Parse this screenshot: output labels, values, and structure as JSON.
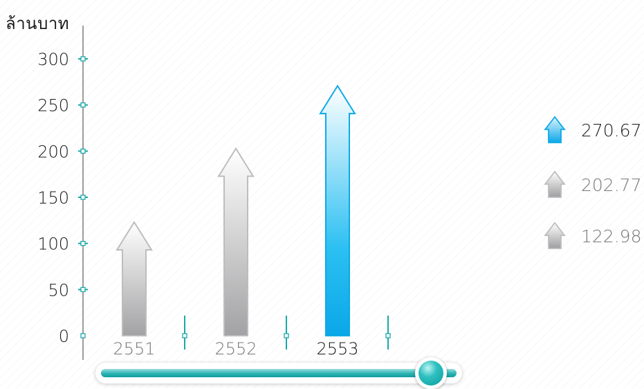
{
  "chart_data": {
    "type": "bar",
    "ylabel": "ล้านบาท",
    "categories": [
      "2551",
      "2552",
      "2553"
    ],
    "values": [
      122.98,
      202.77,
      270.67
    ],
    "ylim": [
      0,
      300
    ],
    "yticks": [
      0,
      50,
      100,
      150,
      200,
      250,
      300
    ],
    "grid": false,
    "bar_shape": "arrow",
    "highlight_index": 2,
    "legend": {
      "placement": "right",
      "entries": [
        "270.67",
        "202.77",
        "122.98"
      ]
    },
    "colors": {
      "highlight": "#1ab3ee",
      "highlight_outline": "#0ea9e6",
      "muted": "#a9a9ab",
      "muted_outline": "#bdbdbf",
      "axis": "#666666",
      "tick_marker": "#1aa8a8"
    }
  },
  "slider": {
    "label": "year-timeline",
    "selected_year": "2553",
    "position_fraction": 0.91
  }
}
